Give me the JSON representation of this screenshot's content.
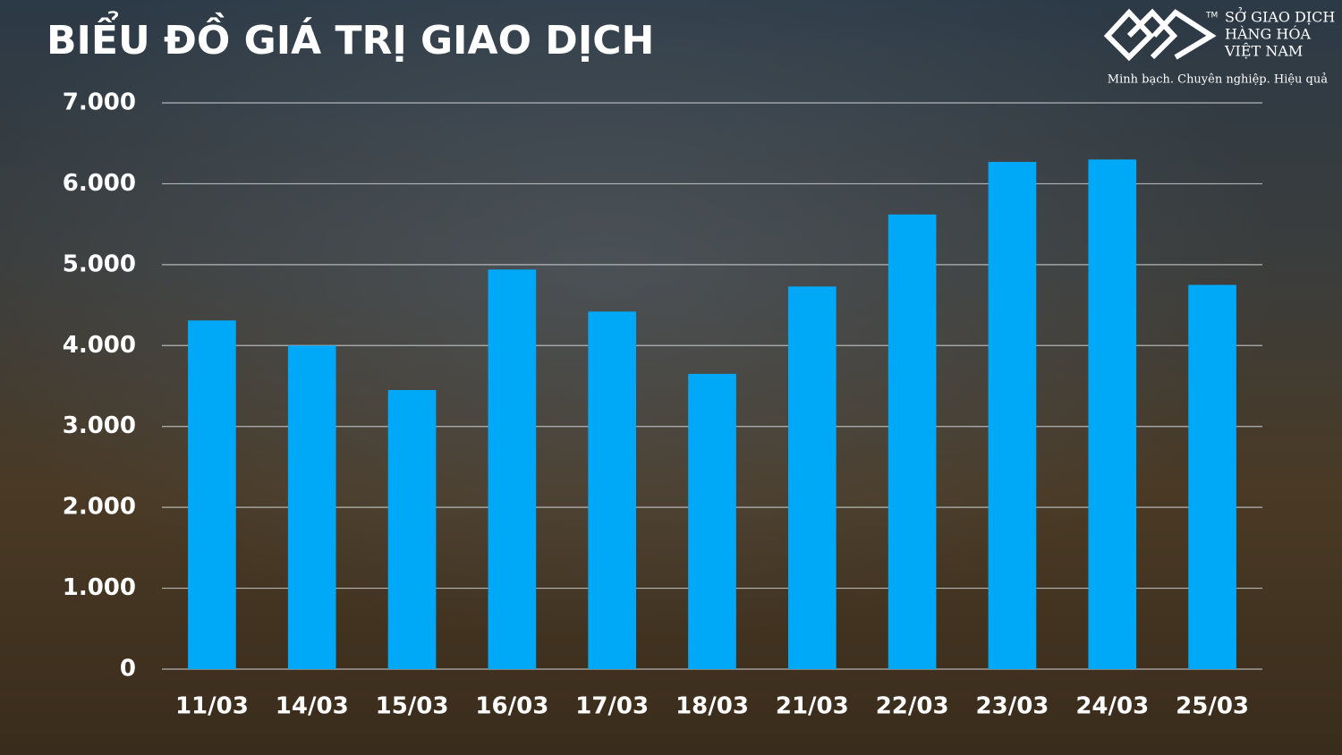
{
  "chart_data": {
    "type": "bar",
    "title": "BIỂU ĐỒ GIÁ TRỊ GIAO DỊCH",
    "categories": [
      "11/03",
      "14/03",
      "15/03",
      "16/03",
      "17/03",
      "18/03",
      "21/03",
      "22/03",
      "23/03",
      "24/03",
      "25/03"
    ],
    "values": [
      4310,
      4000,
      3450,
      4940,
      4420,
      3650,
      4730,
      5620,
      6270,
      6300,
      4750
    ],
    "color": "#00a9f7",
    "ylim": [
      0,
      7000
    ],
    "yticks": [
      0,
      {
        "value": 1000,
        "label": "1.000"
      },
      {
        "value": 2000,
        "label": "2.000"
      },
      {
        "value": 3000,
        "label": "3.000"
      },
      {
        "value": 4000,
        "label": "4.000"
      },
      {
        "value": 5000,
        "label": "5.000"
      },
      {
        "value": 6000,
        "label": "6.000"
      },
      {
        "value": 7000,
        "label": "7.000"
      }
    ],
    "grid": true
  },
  "logo": {
    "trademark": "TM",
    "lines": [
      "SỞ GIAO DỊCH",
      "HÀNG HÓA",
      "VIỆT NAM"
    ],
    "tagline": "Minh bạch. Chuyên nghiệp. Hiệu quả"
  }
}
